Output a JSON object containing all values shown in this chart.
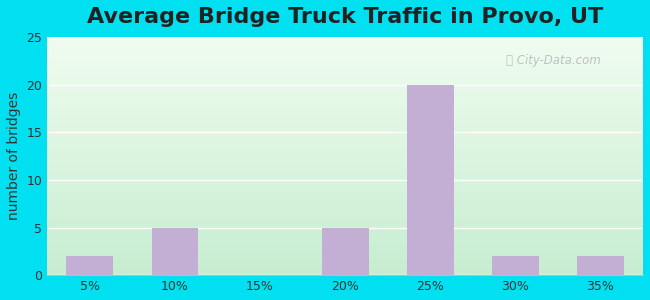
{
  "title": "Average Bridge Truck Traffic in Provo, UT",
  "xlabel": "",
  "ylabel": "number of bridges",
  "categories": [
    "5%",
    "10%",
    "15%",
    "20%",
    "25%",
    "30%",
    "35%"
  ],
  "values": [
    2,
    5,
    0,
    5,
    20,
    2,
    2
  ],
  "bar_color": "#c4afd4",
  "bar_width": 0.55,
  "ylim": [
    0,
    25
  ],
  "yticks": [
    0,
    5,
    10,
    15,
    20,
    25
  ],
  "background_outer": "#00e0f0",
  "grid_color": "#ffffff",
  "title_fontsize": 16,
  "axis_label_fontsize": 10,
  "tick_fontsize": 9
}
